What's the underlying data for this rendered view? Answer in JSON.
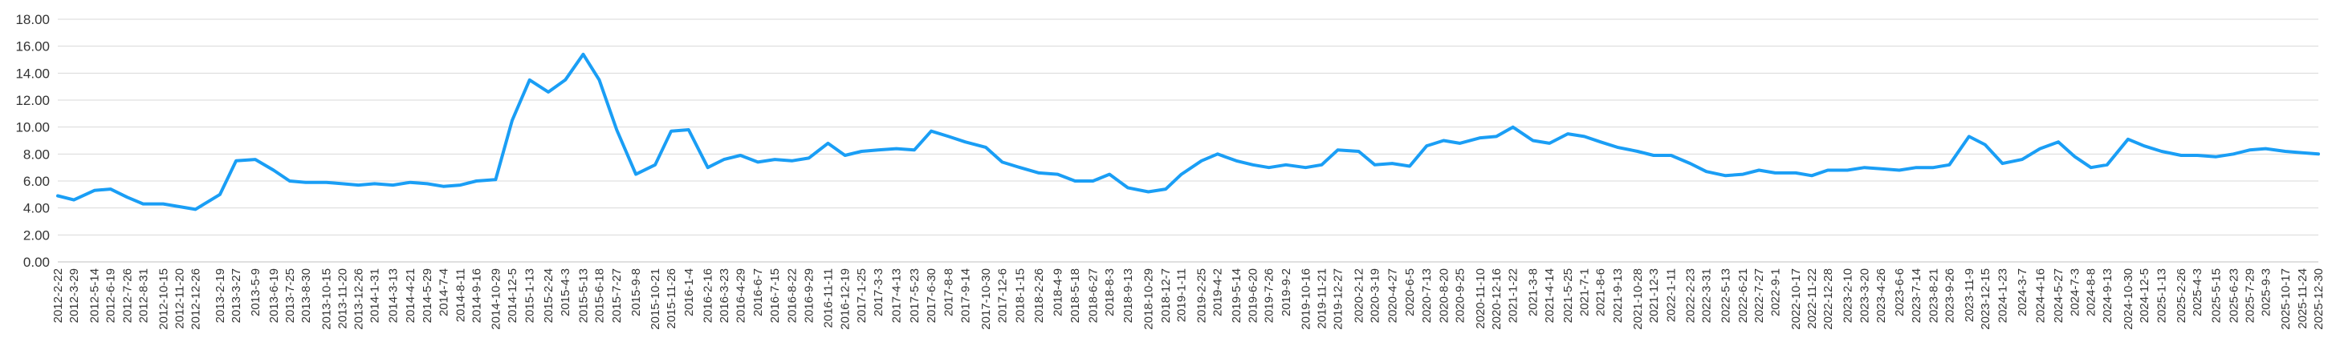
{
  "chart_data": {
    "type": "line",
    "title": "",
    "xlabel": "",
    "ylabel": "",
    "ylim": [
      0,
      18
    ],
    "y_ticks": [
      "0.00",
      "2.00",
      "4.00",
      "6.00",
      "8.00",
      "10.00",
      "12.00",
      "14.00",
      "16.00",
      "18.00"
    ],
    "grid": "horizontal",
    "legend": "none",
    "color": "#1a9ef5",
    "x_ticks": [
      "2012-2-22",
      "2012-3-29",
      "2012-5-14",
      "2012-6-19",
      "2012-7-26",
      "2012-8-31",
      "2012-10-15",
      "2012-11-20",
      "2012-12-26",
      "2013-2-19",
      "2013-3-27",
      "2013-5-9",
      "2013-6-19",
      "2013-7-25",
      "2013-8-30",
      "2013-10-15",
      "2013-11-20",
      "2013-12-26",
      "2014-1-31",
      "2014-3-13",
      "2014-4-21",
      "2014-5-29",
      "2014-7-4",
      "2014-8-11",
      "2014-9-16",
      "2014-10-29",
      "2014-12-5",
      "2015-1-13",
      "2015-2-24",
      "2015-4-3",
      "2015-5-13",
      "2015-6-18",
      "2015-7-27",
      "2015-9-8",
      "2015-10-21",
      "2015-11-26",
      "2016-1-4",
      "2016-2-16",
      "2016-3-23",
      "2016-4-29",
      "2016-6-7",
      "2016-7-15",
      "2016-8-22",
      "2016-9-29",
      "2016-11-11",
      "2016-12-19",
      "2017-1-25",
      "2017-3-3",
      "2017-4-13",
      "2017-5-23",
      "2017-6-30",
      "2017-8-8",
      "2017-9-14",
      "2017-10-30",
      "2017-12-6",
      "2018-1-15",
      "2018-2-26",
      "2018-4-9",
      "2018-5-18",
      "2018-6-27",
      "2018-8-3",
      "2018-9-13",
      "2018-10-29",
      "2018-12-7",
      "2019-1-11",
      "2019-2-25",
      "2019-4-2",
      "2019-5-14",
      "2019-6-20",
      "2019-7-26",
      "2019-9-2",
      "2019-10-16",
      "2019-11-21",
      "2019-12-27",
      "2020-2-12",
      "2020-3-19",
      "2020-4-27",
      "2020-6-5",
      "2020-7-13",
      "2020-8-20",
      "2020-9-25",
      "2020-11-10",
      "2020-12-16",
      "2021-1-22",
      "2021-3-8",
      "2021-4-14",
      "2021-5-25",
      "2021-7-1",
      "2021-8-6",
      "2021-9-13",
      "2021-10-28",
      "2021-12-3",
      "2022-1-11",
      "2022-2-23",
      "2022-3-31",
      "2022-5-13",
      "2022-6-21",
      "2022-7-27",
      "2022-9-1",
      "2022-10-17",
      "2022-11-22",
      "2022-12-28",
      "2023-2-10",
      "2023-3-20",
      "2023-4-26",
      "2023-6-6",
      "2023-7-14",
      "2023-8-21",
      "2023-9-26",
      "2023-11-9",
      "2023-12-15",
      "2024-1-23",
      "2024-3-7",
      "2024-4-16",
      "2024-5-27",
      "2024-7-3",
      "2024-8-8",
      "2024-9-13",
      "2024-10-30",
      "2024-12-5",
      "2025-1-13",
      "2025-2-26",
      "2025-4-3",
      "2025-5-15",
      "2025-6-23",
      "2025-7-29",
      "2025-9-3",
      "2025-10-17",
      "2025-11-24",
      "2025-12-30"
    ],
    "series": [
      {
        "x": [
          "2012-2-22",
          "2012-3-29",
          "2012-5-14",
          "2012-6-19",
          "2012-7-26",
          "2012-8-31",
          "2012-10-15",
          "2012-11-20",
          "2012-12-26",
          "2013-2-19",
          "2013-3-27",
          "2013-5-9",
          "2013-6-19",
          "2013-7-25",
          "2013-8-30",
          "2013-10-15",
          "2013-11-20",
          "2013-12-26",
          "2014-1-31",
          "2014-3-13",
          "2014-4-21",
          "2014-5-29",
          "2014-7-4",
          "2014-8-11",
          "2014-9-16",
          "2014-10-29",
          "2014-12-5",
          "2015-1-13",
          "2015-2-24",
          "2015-4-3",
          "2015-5-13",
          "2015-6-18",
          "2015-7-27",
          "2015-9-8",
          "2015-10-21",
          "2015-11-26",
          "2016-1-4",
          "2016-2-16",
          "2016-3-23",
          "2016-4-29",
          "2016-6-7",
          "2016-7-15",
          "2016-8-22",
          "2016-9-29",
          "2016-11-11",
          "2016-12-19",
          "2017-1-25",
          "2017-3-3",
          "2017-4-13",
          "2017-5-23",
          "2017-6-30",
          "2017-8-8",
          "2017-9-14",
          "2017-10-30",
          "2017-12-6",
          "2018-1-15",
          "2018-2-26",
          "2018-4-9",
          "2018-5-18",
          "2018-6-27",
          "2018-8-3",
          "2018-9-13",
          "2018-10-29",
          "2018-12-7",
          "2019-1-11",
          "2019-2-25",
          "2019-4-2",
          "2019-5-14",
          "2019-6-20",
          "2019-7-26",
          "2019-9-2",
          "2019-10-16",
          "2019-11-21",
          "2019-12-27",
          "2020-2-12",
          "2020-3-19",
          "2020-4-27",
          "2020-6-5",
          "2020-7-13",
          "2020-8-20",
          "2020-9-25",
          "2020-11-10",
          "2020-12-16",
          "2021-1-22",
          "2021-3-8",
          "2021-4-14",
          "2021-5-25",
          "2021-7-1",
          "2021-8-6",
          "2021-9-13",
          "2021-10-28",
          "2021-12-3",
          "2022-1-11",
          "2022-2-23",
          "2022-3-31",
          "2022-5-13",
          "2022-6-21",
          "2022-7-27",
          "2022-9-1",
          "2022-10-17",
          "2022-11-22",
          "2022-12-28",
          "2023-2-10",
          "2023-3-20",
          "2023-4-26",
          "2023-6-6",
          "2023-7-14",
          "2023-8-21",
          "2023-9-26",
          "2023-11-9",
          "2023-12-15",
          "2024-1-23",
          "2024-3-7",
          "2024-4-16",
          "2024-5-27",
          "2024-7-3",
          "2024-8-8",
          "2024-9-13",
          "2024-10-30",
          "2024-12-5",
          "2025-1-13",
          "2025-2-26",
          "2025-4-3",
          "2025-5-15",
          "2025-6-23",
          "2025-7-29",
          "2025-9-3",
          "2025-10-17",
          "2025-11-24",
          "2025-12-30"
        ],
        "values": [
          4.9,
          4.6,
          5.3,
          5.4,
          4.8,
          4.3,
          4.3,
          4.1,
          3.9,
          5.0,
          7.5,
          7.6,
          6.8,
          6.0,
          5.9,
          5.9,
          5.8,
          5.7,
          5.8,
          5.7,
          5.9,
          5.8,
          5.6,
          5.7,
          6.0,
          6.1,
          10.5,
          13.5,
          12.6,
          13.5,
          15.4,
          13.5,
          9.8,
          6.5,
          7.2,
          9.7,
          9.8,
          7.0,
          7.6,
          7.9,
          7.4,
          7.6,
          7.5,
          7.7,
          8.8,
          7.9,
          8.2,
          8.3,
          8.4,
          8.3,
          9.7,
          9.3,
          8.9,
          8.5,
          7.4,
          7.0,
          6.6,
          6.5,
          6.0,
          6.0,
          6.5,
          5.5,
          5.2,
          5.4,
          6.5,
          7.5,
          8.0,
          7.5,
          7.2,
          7.0,
          7.2,
          7.0,
          7.2,
          8.3,
          8.2,
          7.2,
          7.3,
          7.1,
          8.6,
          9.0,
          8.8,
          9.2,
          9.3,
          10.0,
          9.0,
          8.8,
          9.5,
          9.3,
          8.9,
          8.5,
          8.2,
          7.9,
          7.9,
          7.3,
          6.7,
          6.4,
          6.5,
          6.8,
          6.6,
          6.6,
          6.4,
          6.8,
          6.8,
          7.0,
          6.9,
          6.8,
          7.0,
          7.0,
          7.2,
          9.3,
          8.7,
          7.3,
          7.6,
          8.4,
          8.9,
          7.8,
          7.0,
          7.2,
          9.1,
          8.6,
          8.2,
          7.9,
          7.9,
          7.8,
          8.0,
          8.3,
          8.4,
          8.2,
          8.1,
          8.0
        ]
      }
    ]
  }
}
